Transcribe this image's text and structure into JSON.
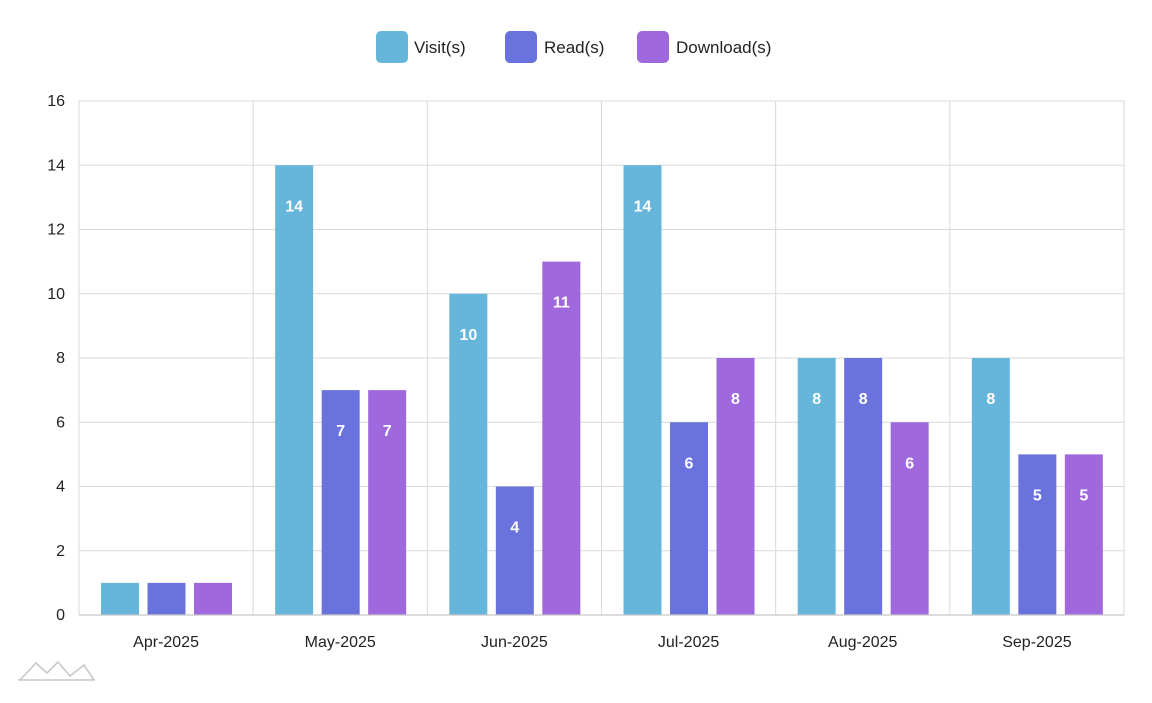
{
  "colors": {
    "visits": "#66b6dc",
    "reads": "#6a73dd",
    "downloads": "#a068dd",
    "grid": "#d9d9d9",
    "axis": "#c8c8c8",
    "logo": "#c8c8c8"
  },
  "logo": {
    "icon": "amcharts-logo-icon"
  },
  "chart_data": {
    "type": "bar",
    "categories": [
      "Apr-2025",
      "May-2025",
      "Jun-2025",
      "Jul-2025",
      "Aug-2025",
      "Sep-2025"
    ],
    "series": [
      {
        "name": "Visit(s)",
        "color_key": "visits",
        "values": [
          1,
          14,
          10,
          14,
          8,
          8
        ]
      },
      {
        "name": "Read(s)",
        "color_key": "reads",
        "values": [
          1,
          7,
          4,
          6,
          8,
          5
        ]
      },
      {
        "name": "Download(s)",
        "color_key": "downloads",
        "values": [
          1,
          7,
          11,
          8,
          6,
          5
        ]
      }
    ],
    "ylim": [
      0,
      16
    ],
    "yticks": [
      "0",
      "2",
      "4",
      "6",
      "8",
      "10",
      "12",
      "14",
      "16"
    ],
    "grid": true,
    "legend_position": "top-center",
    "data_labels": true,
    "data_label_min_value": 2
  }
}
